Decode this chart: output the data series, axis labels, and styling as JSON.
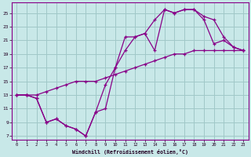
{
  "bg_color": "#c8e8e8",
  "grid_color": "#a0c8c8",
  "line_color": "#880088",
  "xlim": [
    -0.5,
    23.5
  ],
  "ylim": [
    6.5,
    26.5
  ],
  "xticks": [
    0,
    1,
    2,
    3,
    4,
    5,
    6,
    7,
    8,
    9,
    10,
    11,
    12,
    13,
    14,
    15,
    16,
    17,
    18,
    19,
    20,
    21,
    22,
    23
  ],
  "yticks": [
    7,
    9,
    11,
    13,
    15,
    17,
    19,
    21,
    23,
    25
  ],
  "xlabel": "Windchill (Refroidissement éolien,°C)",
  "line1_x": [
    0,
    1,
    2,
    3,
    4,
    5,
    6,
    7,
    8,
    9,
    10,
    11,
    12,
    13,
    14,
    15,
    16,
    17,
    18,
    19,
    20,
    21,
    22,
    23
  ],
  "line1_y": [
    13.0,
    13.0,
    13.0,
    13.5,
    14.0,
    14.5,
    15.0,
    15.0,
    15.0,
    15.5,
    16.0,
    16.5,
    17.0,
    17.5,
    18.0,
    18.5,
    19.0,
    19.0,
    19.5,
    19.5,
    19.5,
    19.5,
    19.5,
    19.5
  ],
  "line2_x": [
    0,
    1,
    2,
    3,
    4,
    5,
    6,
    7,
    8,
    9,
    10,
    11,
    12,
    13,
    14,
    15,
    16,
    17,
    18,
    19,
    20,
    21,
    22,
    23
  ],
  "line2_y": [
    13.0,
    13.0,
    12.5,
    9.0,
    9.5,
    8.5,
    8.0,
    7.0,
    10.5,
    11.0,
    17.0,
    19.5,
    21.5,
    22.0,
    19.5,
    25.5,
    25.0,
    25.5,
    25.5,
    24.0,
    20.5,
    21.0,
    20.0,
    19.5
  ],
  "line3_x": [
    0,
    1,
    2,
    3,
    4,
    5,
    6,
    7,
    8,
    9,
    10,
    11,
    12,
    13,
    14,
    15,
    16,
    17,
    18,
    19,
    20,
    21,
    22,
    23
  ],
  "line3_y": [
    13.0,
    13.0,
    12.5,
    9.0,
    9.5,
    8.5,
    8.0,
    7.0,
    10.5,
    14.5,
    17.0,
    21.5,
    21.5,
    22.0,
    24.0,
    25.5,
    25.0,
    25.5,
    25.5,
    24.5,
    24.0,
    21.5,
    20.0,
    19.5
  ]
}
